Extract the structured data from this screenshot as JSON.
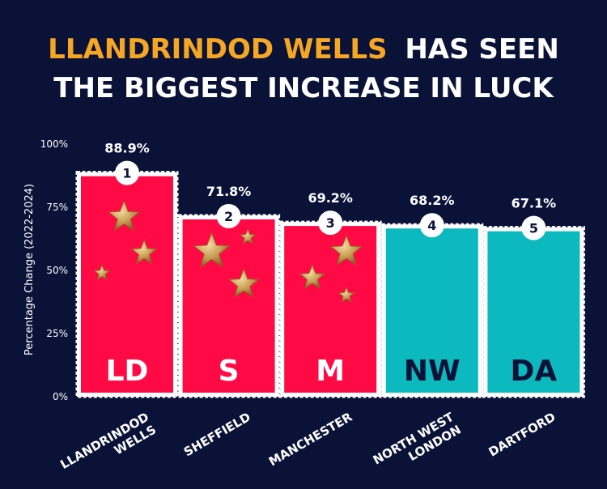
{
  "title": {
    "line1_highlight": "LLANDRINDOD WELLS",
    "line1_rest": "HAS SEEN",
    "line2": "THE BIGGEST INCREASE IN LUCK",
    "highlight_color": "#f5a623",
    "text_color": "#ffffff"
  },
  "colors": {
    "background": "#0b1238",
    "highlight_bar": "#ff0a44",
    "normal_bar": "#0cb9bf",
    "stamp_edge": "#ffffff"
  },
  "chart_data": {
    "type": "bar",
    "categories": [
      "LLANDRINDOD WELLS",
      "SHEFFIELD",
      "MANCHESTER",
      "NORTH WEST LONDON",
      "DARTFORD"
    ],
    "category_lines": [
      [
        "LLANDRINDOD",
        "WELLS"
      ],
      [
        "SHEFFIELD"
      ],
      [
        "MANCHESTER"
      ],
      [
        "NORTH WEST",
        "LONDON"
      ],
      [
        "DARTFORD"
      ]
    ],
    "abbreviations": [
      "LD",
      "S",
      "M",
      "NW",
      "DA"
    ],
    "ranks": [
      "1",
      "2",
      "3",
      "4",
      "5"
    ],
    "values": [
      88.9,
      71.8,
      69.2,
      68.2,
      67.1
    ],
    "value_labels": [
      "88.9%",
      "71.8%",
      "69.2%",
      "68.2%",
      "67.1%"
    ],
    "highlighted": [
      true,
      true,
      true,
      false,
      false
    ],
    "stars": [
      true,
      true,
      true,
      false,
      false
    ],
    "ylabel": "Percentage Change (2022-2024)",
    "yticks": [
      0,
      25,
      50,
      75,
      100
    ],
    "ytick_labels": [
      "0%",
      "25%",
      "50%",
      "75%",
      "100%"
    ],
    "ylim": [
      0,
      100
    ],
    "grid": false,
    "legend": "none"
  }
}
